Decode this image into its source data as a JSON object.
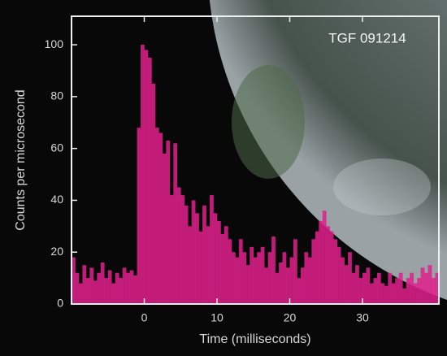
{
  "chart_data": {
    "type": "histogram",
    "annotation": "TGF 091214",
    "xlabel": "Time (milliseconds)",
    "ylabel": "Counts per microsecond",
    "bins": [
      -10,
      -9.5,
      -9,
      -8.5,
      -8,
      -7.5,
      -7,
      -6.5,
      -6,
      -5.5,
      -5,
      -4.5,
      -4,
      -3.5,
      -3,
      -2.5,
      -2,
      -1.5,
      -1,
      -0.5,
      0,
      0.5,
      1,
      1.5,
      2,
      2.5,
      3,
      3.5,
      4,
      4.5,
      5,
      5.5,
      6,
      6.5,
      7,
      7.5,
      8,
      8.5,
      9,
      9.5,
      10,
      10.5,
      11,
      11.5,
      12,
      12.5,
      13,
      13.5,
      14,
      14.5,
      15,
      15.5,
      16,
      16.5,
      17,
      17.5,
      18,
      18.5,
      19,
      19.5,
      20,
      20.5,
      21,
      21.5,
      22,
      22.5,
      23,
      23.5,
      24,
      24.5,
      25,
      25.5,
      26,
      26.5,
      27,
      27.5,
      28,
      28.5,
      29,
      29.5,
      30,
      30.5,
      31,
      31.5,
      32,
      32.5,
      33,
      33.5,
      34,
      34.5,
      35,
      35.5,
      36,
      36.5,
      37,
      37.5,
      38,
      38.5,
      39,
      39.5,
      40,
      40.5
    ],
    "counts": [
      18,
      12,
      8,
      15,
      10,
      14,
      9,
      12,
      16,
      10,
      13,
      8,
      12,
      10,
      14,
      12,
      13,
      11,
      68,
      100,
      98,
      95,
      85,
      68,
      66,
      58,
      63,
      42,
      62,
      45,
      42,
      38,
      30,
      40,
      35,
      28,
      38,
      30,
      42,
      35,
      32,
      27,
      30,
      25,
      20,
      18,
      25,
      20,
      15,
      22,
      18,
      20,
      22,
      14,
      20,
      26,
      12,
      16,
      20,
      14,
      18,
      25,
      10,
      14,
      20,
      18,
      25,
      28,
      32,
      36,
      30,
      28,
      25,
      22,
      18,
      15,
      20,
      12,
      15,
      10,
      12,
      14,
      8,
      10,
      12,
      8,
      7,
      12,
      8,
      10,
      12,
      6,
      10,
      12,
      8,
      10,
      14,
      12,
      15,
      10,
      12
    ],
    "color": "#e0208c",
    "xlim": [
      -10,
      40.5
    ],
    "ylim": [
      0,
      111
    ],
    "xticks": [
      0,
      10,
      20,
      30
    ],
    "yticks": [
      0,
      20,
      40,
      60,
      80,
      100
    ]
  }
}
